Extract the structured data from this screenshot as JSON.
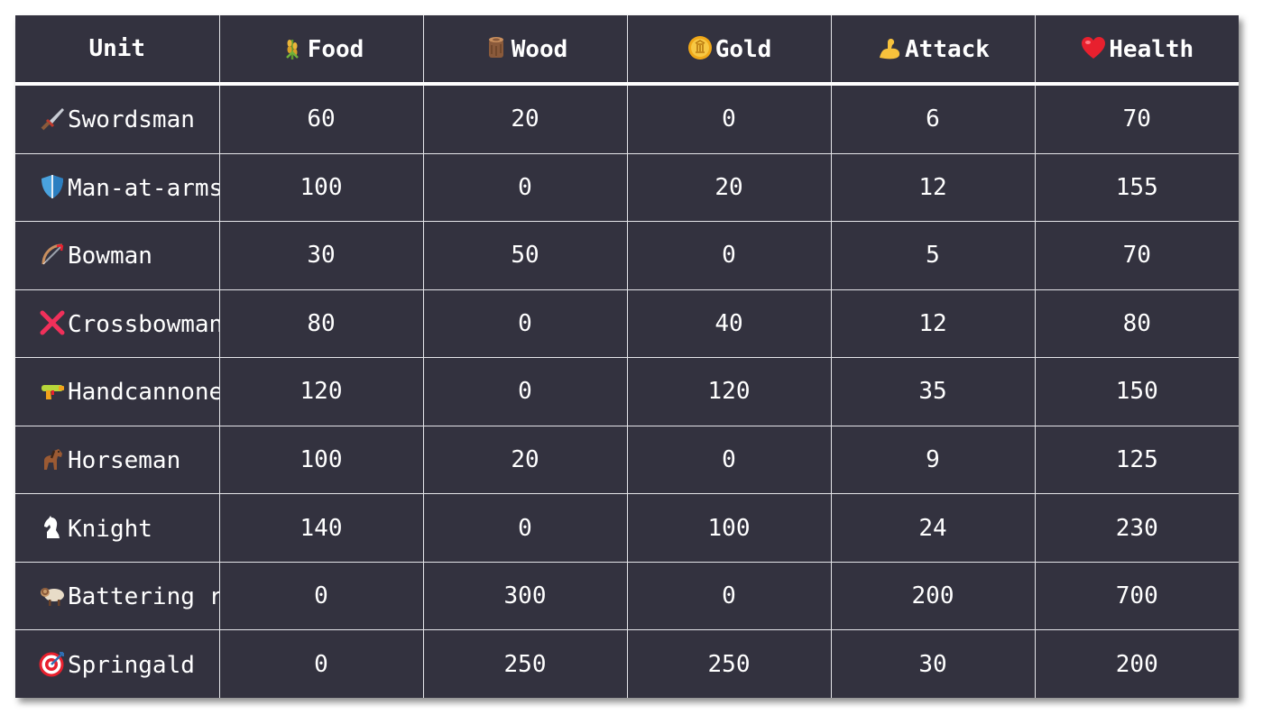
{
  "chart_data": {
    "type": "table",
    "columns": [
      {
        "label": "Unit",
        "icon": ""
      },
      {
        "label": "Food",
        "icon": "wheat-icon"
      },
      {
        "label": "Wood",
        "icon": "wood-log-icon"
      },
      {
        "label": "Gold",
        "icon": "gold-coin-icon"
      },
      {
        "label": "Attack",
        "icon": "flexed-arm-icon"
      },
      {
        "label": "Health",
        "icon": "heart-icon"
      }
    ],
    "rows": [
      {
        "unit": "Swordsman",
        "icon": "dagger-icon",
        "values": [
          "60",
          "20",
          "0",
          "6",
          "70"
        ]
      },
      {
        "unit": "Man-at-arms",
        "icon": "shield-icon",
        "values": [
          "100",
          "0",
          "20",
          "12",
          "155"
        ]
      },
      {
        "unit": "Bowman",
        "icon": "bow-and-arrow-icon",
        "values": [
          "30",
          "50",
          "0",
          "5",
          "70"
        ]
      },
      {
        "unit": "Crossbowman",
        "icon": "cross-mark-icon",
        "values": [
          "80",
          "0",
          "40",
          "12",
          "80"
        ]
      },
      {
        "unit": "Handcannoneer",
        "icon": "water-pistol-icon",
        "values": [
          "120",
          "0",
          "120",
          "35",
          "150"
        ]
      },
      {
        "unit": "Horseman",
        "icon": "horse-icon",
        "values": [
          "100",
          "20",
          "0",
          "9",
          "125"
        ]
      },
      {
        "unit": "Knight",
        "icon": "chess-knight-icon",
        "values": [
          "140",
          "0",
          "100",
          "24",
          "230"
        ]
      },
      {
        "unit": "Battering ram",
        "icon": "ram-icon",
        "values": [
          "0",
          "300",
          "0",
          "200",
          "700"
        ]
      },
      {
        "unit": "Springald",
        "icon": "bullseye-icon",
        "values": [
          "0",
          "250",
          "250",
          "30",
          "200"
        ]
      }
    ]
  },
  "colors": {
    "background": "#33323f",
    "text": "#ffffff",
    "grid": "#e6e6ea"
  }
}
